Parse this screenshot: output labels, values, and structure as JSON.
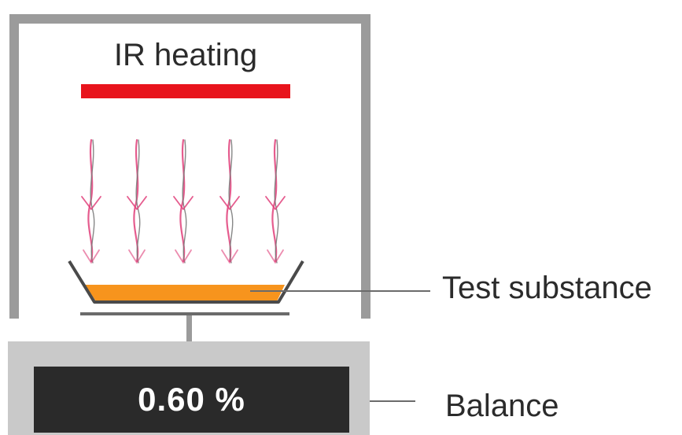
{
  "heater": {
    "label": "IR heating",
    "color": "#e8141c"
  },
  "substance": {
    "label": "Test substance",
    "color": "#f7941d"
  },
  "balance": {
    "label": "Balance",
    "readout": "0.60 %"
  },
  "colors": {
    "chamber": "#9b9b9b",
    "base": "#c9c9c9",
    "display": "#2a2a2a",
    "radiation": "#e0407a",
    "leader": "#6b6b6b"
  }
}
